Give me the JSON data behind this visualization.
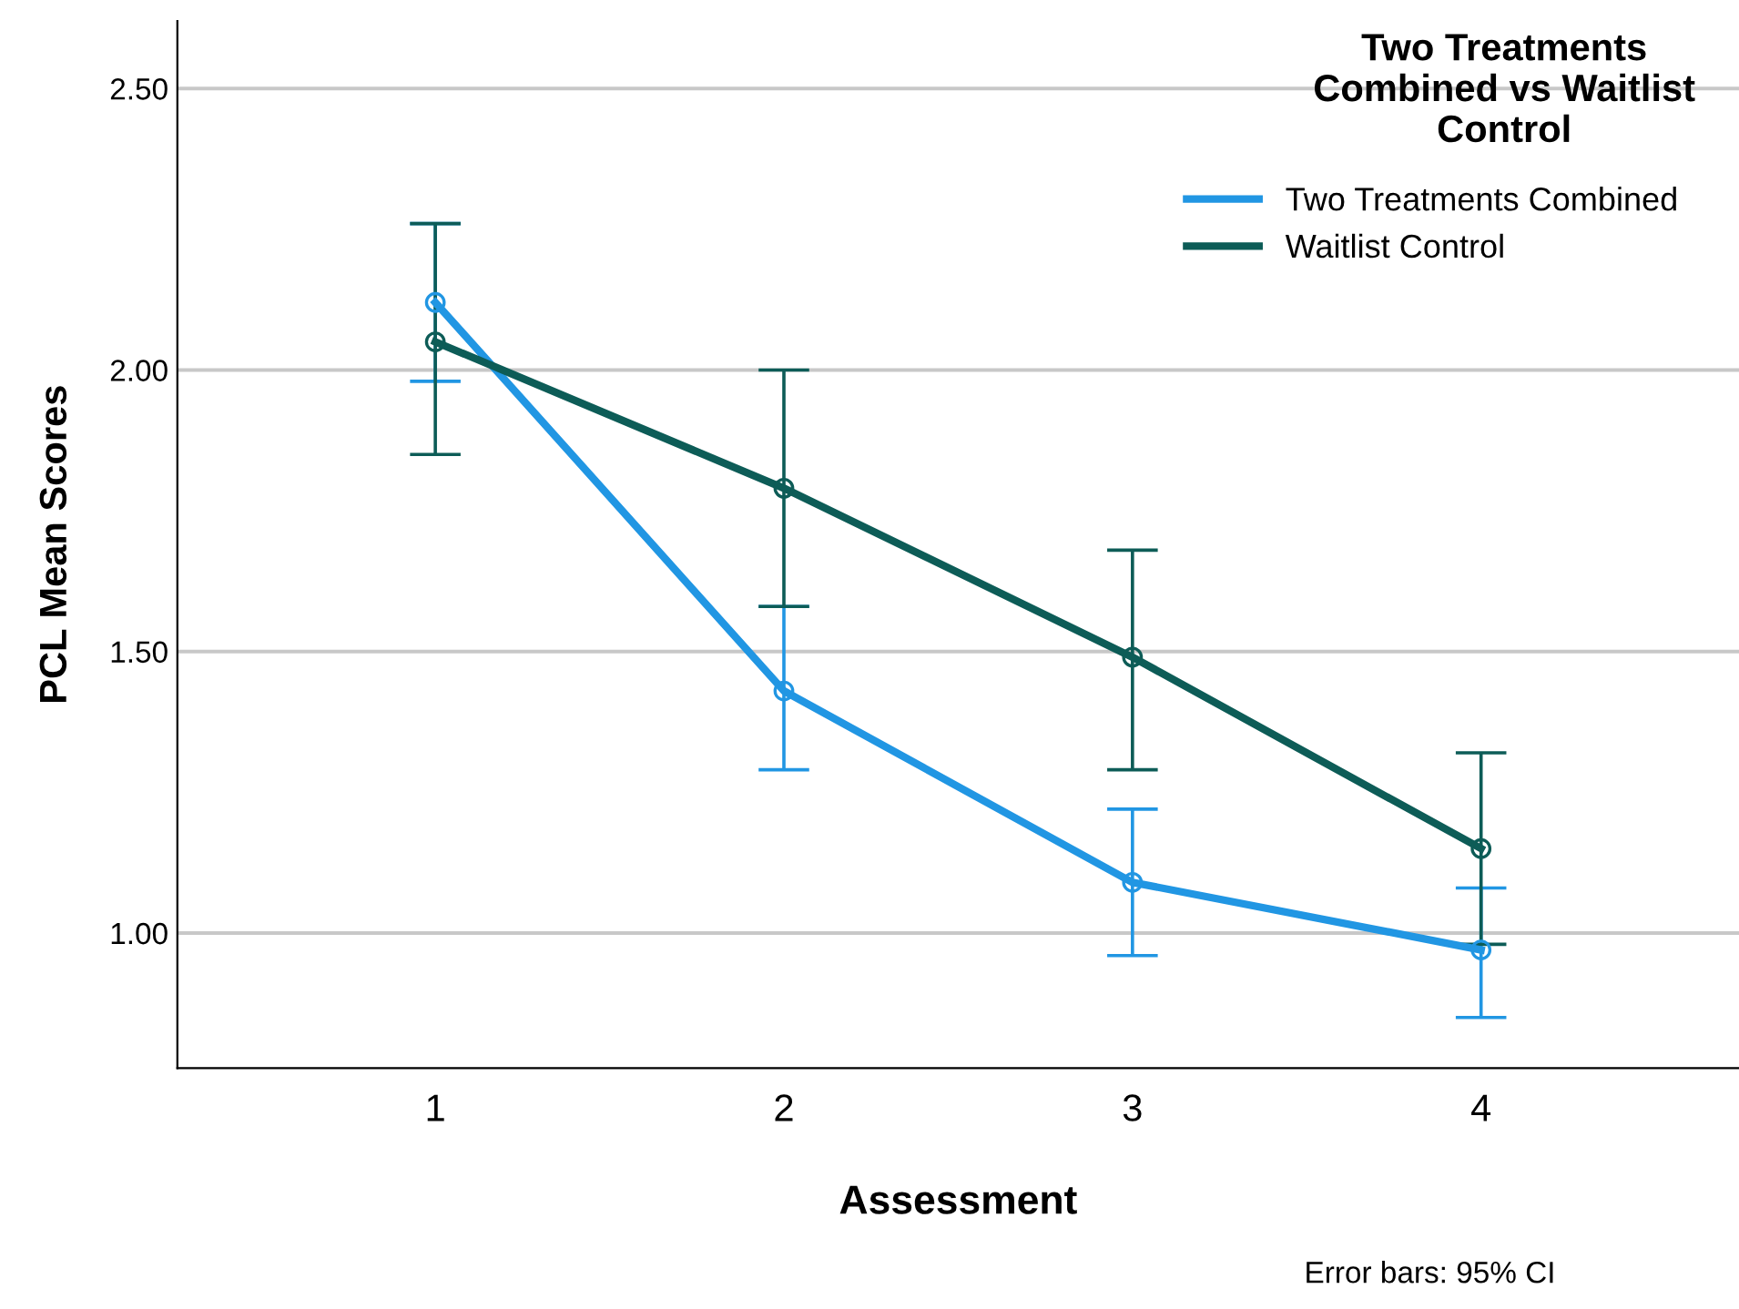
{
  "chart_data": {
    "type": "line",
    "xlabel": "Assessment",
    "ylabel": "PCL Mean Scores",
    "legend_title": "Two Treatments Combined vs Waitlist Control",
    "x": [
      1,
      2,
      3,
      4
    ],
    "xlim": [
      0.26,
      4.74
    ],
    "xticks": [
      1,
      2,
      3,
      4
    ],
    "ylim": [
      0.76,
      2.62
    ],
    "yticks": [
      {
        "value": 1.0,
        "label": "1.00"
      },
      {
        "value": 1.5,
        "label": "1.50"
      },
      {
        "value": 2.0,
        "label": "2.00"
      },
      {
        "value": 2.5,
        "label": "2.50"
      }
    ],
    "grid": "y",
    "legend": "top right",
    "marker": "circle",
    "line_style": "solid",
    "series": [
      {
        "name": "Two Treatments Combined",
        "color": "#2196e3",
        "values": [
          2.12,
          1.43,
          1.09,
          0.97
        ],
        "errors": [
          [
            1.98,
            2.26
          ],
          [
            1.29,
            1.58
          ],
          [
            0.96,
            1.22
          ],
          [
            0.85,
            1.08
          ]
        ]
      },
      {
        "name": "Waitlist Control",
        "color": "#0d5c57",
        "values": [
          2.05,
          1.79,
          1.49,
          1.15
        ],
        "errors": [
          [
            1.85,
            2.26
          ],
          [
            1.58,
            2.0
          ],
          [
            1.29,
            1.68
          ],
          [
            0.98,
            1.32
          ]
        ]
      }
    ],
    "annotations": [
      "Error bars: 95% CI"
    ]
  }
}
